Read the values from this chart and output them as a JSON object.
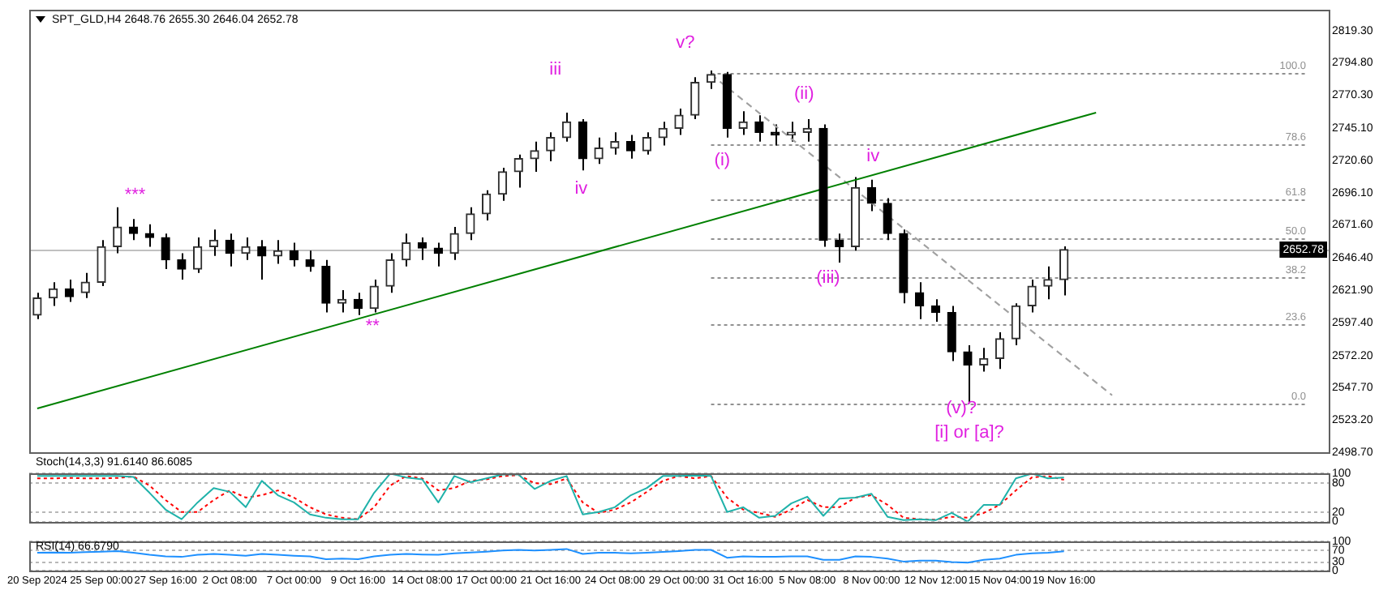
{
  "chart_data": [
    {
      "type": "candlestick",
      "title": "SPT_GLD,H4 2648.76 2655.30 2646.04 2652.78",
      "tick_labels": "y",
      "ohlc": [
        [
          2603,
          2620,
          2600,
          2616
        ],
        [
          2616,
          2628,
          2610,
          2623
        ],
        [
          2623,
          2630,
          2613,
          2617
        ],
        [
          2620,
          2635,
          2616,
          2628
        ],
        [
          2628,
          2660,
          2625,
          2655
        ],
        [
          2655,
          2685,
          2650,
          2670
        ],
        [
          2670,
          2676,
          2660,
          2665
        ],
        [
          2665,
          2672,
          2655,
          2662
        ],
        [
          2662,
          2665,
          2638,
          2645
        ],
        [
          2645,
          2650,
          2630,
          2638
        ],
        [
          2638,
          2662,
          2635,
          2655
        ],
        [
          2655,
          2668,
          2648,
          2660
        ],
        [
          2660,
          2665,
          2640,
          2650
        ],
        [
          2650,
          2662,
          2645,
          2655
        ],
        [
          2655,
          2660,
          2630,
          2648
        ],
        [
          2648,
          2660,
          2642,
          2652
        ],
        [
          2652,
          2658,
          2640,
          2645
        ],
        [
          2645,
          2652,
          2636,
          2640
        ],
        [
          2640,
          2645,
          2605,
          2612
        ],
        [
          2612,
          2622,
          2605,
          2615
        ],
        [
          2615,
          2620,
          2603,
          2608
        ],
        [
          2608,
          2630,
          2605,
          2625
        ],
        [
          2625,
          2650,
          2620,
          2645
        ],
        [
          2645,
          2665,
          2640,
          2658
        ],
        [
          2658,
          2662,
          2645,
          2654
        ],
        [
          2654,
          2658,
          2640,
          2650
        ],
        [
          2650,
          2670,
          2645,
          2665
        ],
        [
          2665,
          2685,
          2660,
          2680
        ],
        [
          2680,
          2698,
          2675,
          2695
        ],
        [
          2695,
          2715,
          2690,
          2712
        ],
        [
          2712,
          2725,
          2700,
          2722
        ],
        [
          2722,
          2735,
          2712,
          2728
        ],
        [
          2728,
          2742,
          2720,
          2738
        ],
        [
          2738,
          2757,
          2735,
          2750
        ],
        [
          2750,
          2752,
          2713,
          2722
        ],
        [
          2722,
          2738,
          2718,
          2730
        ],
        [
          2730,
          2742,
          2725,
          2735
        ],
        [
          2735,
          2740,
          2722,
          2728
        ],
        [
          2728,
          2742,
          2725,
          2738
        ],
        [
          2738,
          2750,
          2732,
          2745
        ],
        [
          2745,
          2760,
          2740,
          2755
        ],
        [
          2755,
          2784,
          2752,
          2780
        ],
        [
          2780,
          2789,
          2775,
          2786
        ],
        [
          2786,
          2788,
          2738,
          2745
        ],
        [
          2745,
          2758,
          2740,
          2750
        ],
        [
          2750,
          2755,
          2735,
          2742
        ],
        [
          2742,
          2748,
          2732,
          2740
        ],
        [
          2740,
          2750,
          2735,
          2742
        ],
        [
          2742,
          2752,
          2735,
          2745
        ],
        [
          2745,
          2748,
          2655,
          2660
        ],
        [
          2660,
          2665,
          2643,
          2655
        ],
        [
          2655,
          2708,
          2652,
          2700
        ],
        [
          2700,
          2706,
          2682,
          2688
        ],
        [
          2688,
          2692,
          2660,
          2665
        ],
        [
          2665,
          2668,
          2612,
          2620
        ],
        [
          2620,
          2628,
          2600,
          2610
        ],
        [
          2610,
          2615,
          2598,
          2605
        ],
        [
          2605,
          2610,
          2568,
          2575
        ],
        [
          2575,
          2580,
          2536,
          2565
        ],
        [
          2565,
          2578,
          2560,
          2570
        ],
        [
          2570,
          2590,
          2562,
          2585
        ],
        [
          2585,
          2612,
          2580,
          2610
        ],
        [
          2610,
          2630,
          2605,
          2625
        ],
        [
          2625,
          2640,
          2615,
          2630
        ],
        [
          2630,
          2655.3,
          2618,
          2652.78
        ],
        null,
        null,
        null,
        null,
        null,
        null,
        null,
        null,
        null,
        null,
        null,
        null,
        null,
        null,
        null,
        null
      ],
      "series": [
        {
          "type": "line",
          "color": "#008000",
          "values": [
            2532,
            null,
            null,
            null,
            null,
            null,
            null,
            null,
            null,
            null,
            null,
            null,
            null,
            null,
            null,
            null,
            null,
            null,
            null,
            null,
            null,
            null,
            null,
            null,
            null,
            null,
            null,
            null,
            null,
            null,
            null,
            null,
            null,
            null,
            null,
            null,
            null,
            null,
            null,
            null,
            null,
            null,
            null,
            null,
            null,
            null,
            null,
            null,
            null,
            null,
            null,
            null,
            null,
            null,
            null,
            null,
            null,
            null,
            null,
            null,
            null,
            null,
            null,
            null,
            null,
            null,
            2757,
            null,
            null,
            null,
            null,
            null,
            null,
            null,
            null,
            null,
            null,
            null,
            null,
            null,
            null
          ]
        },
        {
          "type": "line",
          "color": "#a0a0a0",
          "line_style": "dashed",
          "values": [
            null,
            null,
            null,
            null,
            null,
            null,
            null,
            null,
            null,
            null,
            null,
            null,
            null,
            null,
            null,
            null,
            null,
            null,
            null,
            null,
            null,
            null,
            null,
            null,
            null,
            null,
            null,
            null,
            null,
            null,
            null,
            null,
            null,
            null,
            null,
            null,
            null,
            null,
            null,
            null,
            null,
            null,
            2786,
            null,
            null,
            null,
            null,
            null,
            null,
            null,
            null,
            null,
            null,
            null,
            null,
            null,
            null,
            null,
            null,
            null,
            null,
            null,
            null,
            null,
            null,
            null,
            null,
            2542,
            null,
            null,
            null,
            null,
            null,
            null,
            null,
            null,
            null,
            null,
            null,
            null,
            null
          ]
        }
      ],
      "ylim": [
        2498.7,
        2835
      ],
      "yticks": [
        {
          "value": 2819.3,
          "label": "2819.30"
        },
        {
          "value": 2794.8,
          "label": "2794.80"
        },
        {
          "value": 2770.3,
          "label": "2770.30"
        },
        {
          "value": 2745.1,
          "label": "2745.10"
        },
        {
          "value": 2720.6,
          "label": "2720.60"
        },
        {
          "value": 2696.1,
          "label": "2696.10"
        },
        {
          "value": 2671.6,
          "label": "2671.60"
        },
        {
          "value": 2646.4,
          "label": "2646.40"
        },
        {
          "value": 2621.9,
          "label": "2621.90"
        },
        {
          "value": 2597.4,
          "label": "2597.40"
        },
        {
          "value": 2572.2,
          "label": "2572.20"
        },
        {
          "value": 2547.7,
          "label": "2547.70"
        },
        {
          "value": 2523.2,
          "label": "2523.20"
        },
        {
          "value": 2498.7,
          "label": "2498.70"
        }
      ],
      "ref_lines": [
        {
          "axis": "y",
          "value": 2787,
          "color": "#909090",
          "line_style": "dotted"
        },
        {
          "axis": "y",
          "value": 2733,
          "color": "#909090",
          "line_style": "dotted"
        },
        {
          "axis": "y",
          "value": 2691,
          "color": "#909090",
          "line_style": "dotted"
        },
        {
          "axis": "y",
          "value": 2661.5,
          "color": "#909090",
          "line_style": "dotted"
        },
        {
          "axis": "y",
          "value": 2632,
          "color": "#909090",
          "line_style": "dotted"
        },
        {
          "axis": "y",
          "value": 2596,
          "color": "#909090",
          "line_style": "dotted"
        },
        {
          "axis": "y",
          "value": 2536,
          "color": "#909090",
          "line_style": "dotted"
        },
        {
          "axis": "y",
          "value": 2652.78,
          "label": "2652.78",
          "color": "#c0c0c0",
          "line_style": "solid"
        }
      ],
      "annotations": [
        "***",
        "iii",
        "iv",
        "v?",
        "**",
        "(i)",
        "(ii)",
        "(iii)",
        "iv",
        "(v)?",
        "[i] or [a]?",
        {
          "text": "100.0",
          "y": 2787
        },
        {
          "text": "78.6",
          "y": 2733
        },
        {
          "text": "61.8",
          "y": 2691
        },
        {
          "text": "50.0",
          "y": 2661.5
        },
        {
          "text": "38.2",
          "y": 2632
        },
        {
          "text": "23.6",
          "y": 2596
        },
        {
          "text": "0.0",
          "y": 2536
        }
      ]
    },
    {
      "type": "line",
      "title": "Stoch(14,3,3) 91.6140 86.6085",
      "tick_labels": "y",
      "grid": "y",
      "series": [
        {
          "color": "#20b2aa",
          "values": [
            95,
            95,
            95,
            95,
            95,
            95,
            93,
            60,
            25,
            5,
            40,
            70,
            62,
            30,
            85,
            55,
            40,
            15,
            8,
            5,
            5,
            60,
            100,
            92,
            88,
            40,
            95,
            82,
            90,
            98,
            98,
            68,
            85,
            95,
            15,
            20,
            30,
            55,
            70,
            95,
            95,
            96,
            95,
            20,
            30,
            8,
            12,
            38,
            52,
            12,
            48,
            50,
            58,
            10,
            3,
            5,
            3,
            18,
            0,
            35,
            35,
            90,
            100,
            90,
            92,
            null,
            null,
            null,
            null,
            null,
            null,
            null,
            null,
            null,
            null,
            null,
            null,
            null,
            null,
            null,
            null
          ]
        },
        {
          "color": "#ff0000",
          "line_style": "dotted",
          "values": [
            90,
            90,
            91,
            90,
            90,
            91,
            94,
            75,
            45,
            20,
            20,
            45,
            65,
            50,
            55,
            65,
            50,
            30,
            15,
            8,
            5,
            30,
            75,
            95,
            90,
            65,
            70,
            85,
            88,
            95,
            97,
            80,
            78,
            90,
            40,
            18,
            25,
            40,
            62,
            85,
            95,
            90,
            95,
            50,
            25,
            18,
            10,
            25,
            45,
            30,
            30,
            50,
            55,
            35,
            8,
            5,
            4,
            10,
            8,
            18,
            35,
            65,
            92,
            95,
            87,
            null,
            null,
            null,
            null,
            null,
            null,
            null,
            null,
            null,
            null,
            null,
            null,
            null,
            null,
            null,
            null
          ]
        }
      ],
      "ylim": [
        0,
        100
      ],
      "yticks": [
        100,
        80,
        20,
        0
      ]
    },
    {
      "type": "line",
      "title": "RSI(14) 66.6790",
      "grid": "y",
      "categories": [
        "20 Sep 2024",
        null,
        null,
        null,
        "25 Sep 00:00",
        null,
        null,
        null,
        "27 Sep 16:00",
        null,
        null,
        null,
        "2 Oct 08:00",
        null,
        null,
        null,
        "7 Oct 00:00",
        null,
        null,
        null,
        "9 Oct 16:00",
        null,
        null,
        null,
        "14 Oct 08:00",
        null,
        null,
        null,
        "17 Oct 00:00",
        null,
        null,
        null,
        "21 Oct 16:00",
        null,
        null,
        null,
        "24 Oct 08:00",
        null,
        null,
        null,
        "29 Oct 00:00",
        null,
        null,
        null,
        "31 Oct 16:00",
        null,
        null,
        null,
        "5 Nov 08:00",
        null,
        null,
        null,
        "8 Nov 00:00",
        null,
        null,
        null,
        "12 Nov 12:00",
        null,
        null,
        null,
        "15 Nov 04:00",
        null,
        null,
        null,
        "19 Nov 16:00",
        null,
        null,
        null,
        null,
        null,
        null,
        null,
        null,
        null,
        null,
        null,
        null,
        null,
        null,
        null,
        null
      ],
      "series": [
        {
          "color": "#1e90ff",
          "values": [
            62,
            63,
            62,
            64,
            66,
            68,
            62,
            55,
            50,
            48,
            55,
            58,
            55,
            52,
            58,
            55,
            52,
            50,
            40,
            42,
            40,
            50,
            55,
            58,
            56,
            55,
            60,
            63,
            66,
            70,
            72,
            70,
            72,
            75,
            58,
            62,
            62,
            60,
            62,
            65,
            68,
            72,
            72,
            45,
            50,
            48,
            48,
            50,
            50,
            38,
            38,
            50,
            48,
            42,
            32,
            35,
            35,
            30,
            28,
            38,
            42,
            55,
            60,
            62,
            67,
            null,
            null,
            null,
            null,
            null,
            null,
            null,
            null,
            null,
            null,
            null,
            null,
            null,
            null,
            null,
            null
          ]
        }
      ],
      "ylim": [
        0,
        100
      ],
      "yticks": [
        100,
        70,
        30,
        0
      ]
    }
  ]
}
